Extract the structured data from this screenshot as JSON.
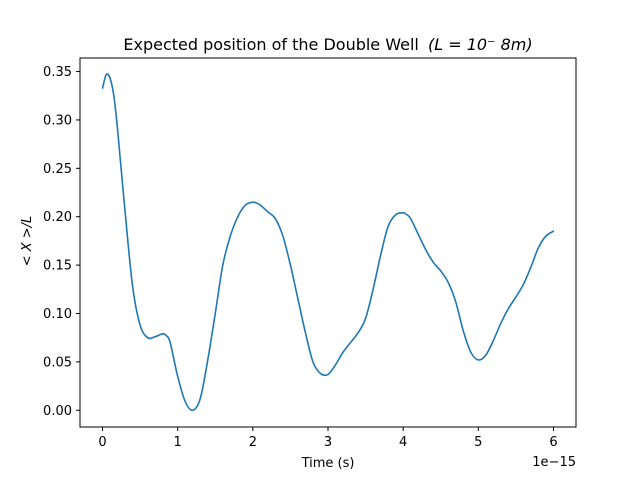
{
  "chart_data": {
    "type": "line",
    "title": "Expected position of the Double Well",
    "title_math": "(L = 10⁻ 8m)",
    "xlabel": "Time (s)",
    "ylabel": "< X >/L",
    "x_offset_text": "1e−15",
    "x_scale": 1e-15,
    "xlim": [
      -0.3,
      6.3
    ],
    "ylim": [
      -0.0173,
      0.364
    ],
    "xticks": [
      0,
      1,
      2,
      3,
      4,
      5,
      6
    ],
    "xtick_labels": [
      "0",
      "1",
      "2",
      "3",
      "4",
      "5",
      "6"
    ],
    "yticks": [
      0.0,
      0.05,
      0.1,
      0.15,
      0.2,
      0.25,
      0.3,
      0.35
    ],
    "ytick_labels": [
      "0.00",
      "0.05",
      "0.10",
      "0.15",
      "0.20",
      "0.25",
      "0.30",
      "0.35"
    ],
    "grid": false,
    "line_color": "#1f77b4",
    "series": [
      {
        "x": [
          0.0,
          0.05,
          0.1,
          0.15,
          0.2,
          0.3,
          0.4,
          0.5,
          0.6,
          0.7,
          0.8,
          0.85,
          0.9,
          1.0,
          1.1,
          1.2,
          1.3,
          1.4,
          1.5,
          1.6,
          1.7,
          1.8,
          1.9,
          2.0,
          2.05,
          2.1,
          2.2,
          2.3,
          2.4,
          2.5,
          2.6,
          2.7,
          2.8,
          2.9,
          3.0,
          3.1,
          3.2,
          3.3,
          3.4,
          3.5,
          3.6,
          3.7,
          3.8,
          3.9,
          4.0,
          4.05,
          4.1,
          4.2,
          4.3,
          4.4,
          4.5,
          4.6,
          4.7,
          4.8,
          4.9,
          5.0,
          5.1,
          5.2,
          5.3,
          5.4,
          5.5,
          5.6,
          5.7,
          5.8,
          5.9,
          6.0
        ],
        "y": [
          0.333,
          0.347,
          0.343,
          0.325,
          0.29,
          0.205,
          0.128,
          0.088,
          0.075,
          0.076,
          0.079,
          0.077,
          0.07,
          0.035,
          0.009,
          0.0,
          0.012,
          0.052,
          0.1,
          0.15,
          0.18,
          0.2,
          0.212,
          0.215,
          0.214,
          0.212,
          0.205,
          0.198,
          0.18,
          0.15,
          0.115,
          0.08,
          0.05,
          0.038,
          0.037,
          0.047,
          0.06,
          0.07,
          0.08,
          0.095,
          0.125,
          0.16,
          0.19,
          0.202,
          0.204,
          0.202,
          0.198,
          0.182,
          0.166,
          0.153,
          0.144,
          0.132,
          0.112,
          0.082,
          0.06,
          0.052,
          0.057,
          0.072,
          0.09,
          0.105,
          0.117,
          0.13,
          0.148,
          0.168,
          0.18,
          0.185
        ]
      }
    ]
  }
}
